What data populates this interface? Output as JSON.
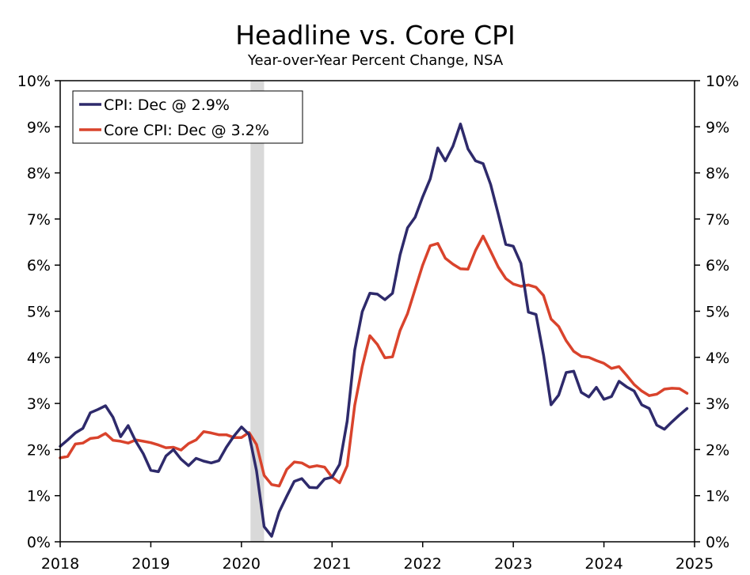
{
  "chart_data": {
    "type": "line",
    "title": "Headline vs. Core CPI",
    "subtitle": "Year-over-Year Percent Change, NSA",
    "xlabel": "",
    "ylabel": "",
    "xlim": [
      2018,
      2025
    ],
    "ylim": [
      0,
      10
    ],
    "x_ticks": [
      "2018",
      "2019",
      "2020",
      "2021",
      "2022",
      "2023",
      "2024",
      "2025"
    ],
    "y_ticks": [
      "0%",
      "1%",
      "2%",
      "3%",
      "4%",
      "5%",
      "6%",
      "7%",
      "8%",
      "9%",
      "10%"
    ],
    "recession_band": [
      2020.1,
      2020.25
    ],
    "legend_position": "top-left",
    "series": [
      {
        "name": "CPI",
        "legend_label": "CPI: Dec @ 2.9%",
        "color": "#2e2a6b",
        "start": "2018-01",
        "values": [
          2.07,
          2.21,
          2.36,
          2.46,
          2.8,
          2.87,
          2.95,
          2.7,
          2.28,
          2.52,
          2.18,
          1.91,
          1.55,
          1.52,
          1.86,
          2.0,
          1.79,
          1.65,
          1.81,
          1.75,
          1.71,
          1.76,
          2.05,
          2.29,
          2.49,
          2.33,
          1.54,
          0.33,
          0.12,
          0.65,
          0.99,
          1.31,
          1.37,
          1.18,
          1.17,
          1.36,
          1.4,
          1.68,
          2.62,
          4.16,
          4.99,
          5.39,
          5.37,
          5.25,
          5.39,
          6.22,
          6.81,
          7.04,
          7.48,
          7.87,
          8.54,
          8.26,
          8.58,
          9.06,
          8.52,
          8.26,
          8.2,
          7.75,
          7.11,
          6.45,
          6.41,
          6.04,
          4.98,
          4.93,
          4.05,
          2.97,
          3.18,
          3.67,
          3.7,
          3.24,
          3.14,
          3.35,
          3.09,
          3.15,
          3.48,
          3.36,
          3.27,
          2.97,
          2.89,
          2.53,
          2.44,
          2.6,
          2.75,
          2.89
        ]
      },
      {
        "name": "Core CPI",
        "legend_label": "Core CPI: Dec @ 3.2%",
        "color": "#d9432c",
        "start": "2018-01",
        "values": [
          1.82,
          1.85,
          2.12,
          2.14,
          2.24,
          2.26,
          2.35,
          2.2,
          2.18,
          2.14,
          2.21,
          2.18,
          2.15,
          2.1,
          2.04,
          2.05,
          1.99,
          2.13,
          2.21,
          2.39,
          2.36,
          2.32,
          2.32,
          2.26,
          2.26,
          2.37,
          2.11,
          1.44,
          1.24,
          1.21,
          1.57,
          1.73,
          1.71,
          1.62,
          1.65,
          1.62,
          1.4,
          1.28,
          1.65,
          2.96,
          3.8,
          4.47,
          4.28,
          3.99,
          4.01,
          4.58,
          4.95,
          5.48,
          6.0,
          6.42,
          6.47,
          6.15,
          6.02,
          5.92,
          5.91,
          6.32,
          6.63,
          6.3,
          5.96,
          5.71,
          5.59,
          5.54,
          5.57,
          5.52,
          5.34,
          4.83,
          4.67,
          4.36,
          4.13,
          4.02,
          4.0,
          3.93,
          3.87,
          3.76,
          3.8,
          3.61,
          3.41,
          3.27,
          3.17,
          3.2,
          3.31,
          3.33,
          3.32,
          3.22
        ]
      }
    ]
  }
}
